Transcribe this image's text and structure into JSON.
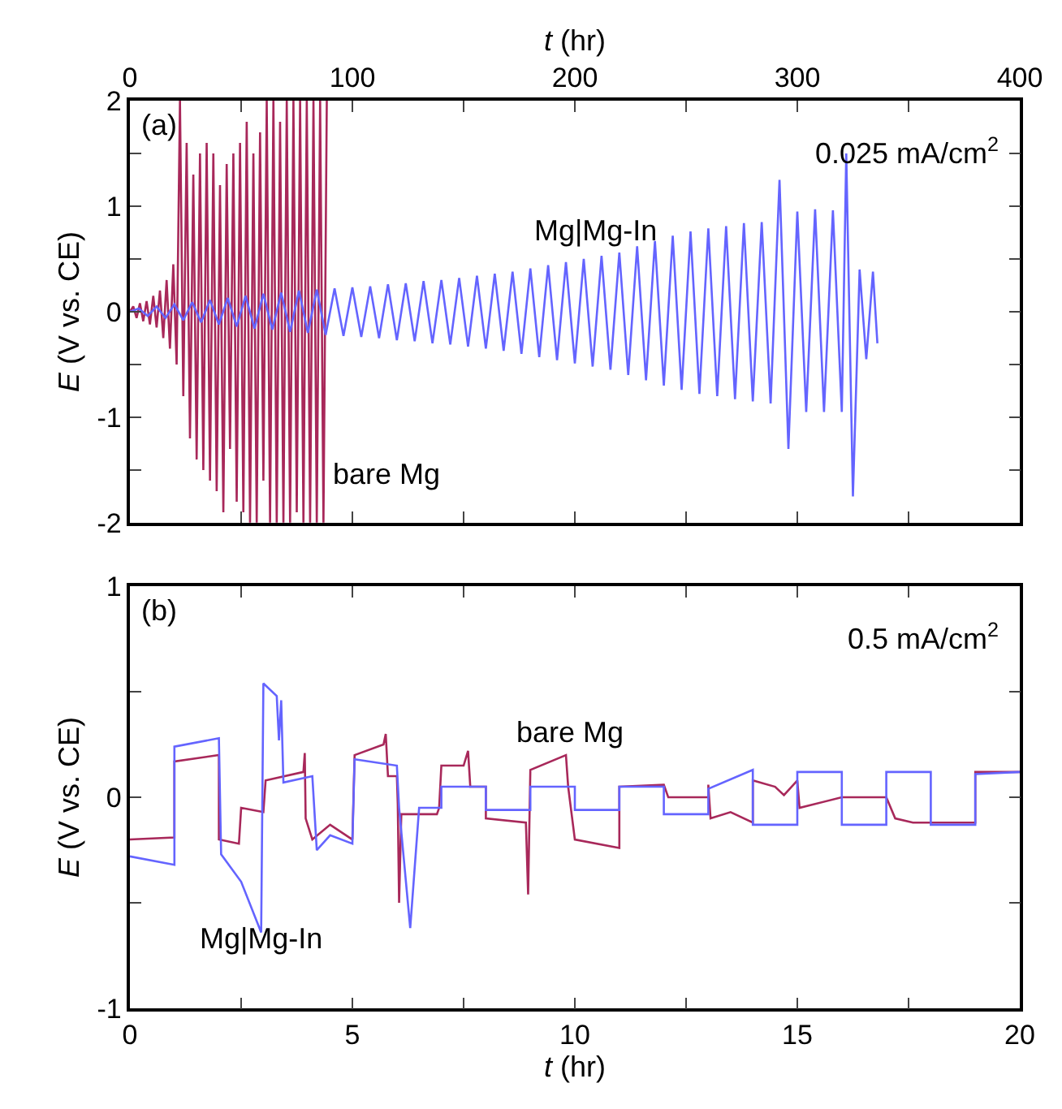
{
  "chart_data": [
    {
      "type": "line",
      "xlabel": "t (hr)",
      "ylabel": "E (V vs. CE)",
      "xlim": [
        0,
        400
      ],
      "xticks": [
        0,
        {
          "value": 50,
          "label": null
        },
        100,
        {
          "value": 150,
          "label": null
        },
        200,
        {
          "value": 250,
          "label": null
        },
        300,
        {
          "value": 350,
          "label": null
        },
        400
      ],
      "ylim": [
        -2,
        2
      ],
      "yticks": [
        -2,
        {
          "value": -1.5,
          "label": null
        },
        -1,
        {
          "value": -0.5,
          "label": null
        },
        0,
        {
          "value": 0.5,
          "label": null
        },
        1,
        {
          "value": 1.5,
          "label": null
        },
        2
      ],
      "series": [
        {
          "name": "bare Mg",
          "color": "#a8285a",
          "x": [
            0,
            1.5,
            3,
            4.5,
            6,
            7.5,
            9,
            10.5,
            12,
            13.5,
            15,
            16.5,
            18,
            19.5,
            21,
            22.5,
            24,
            25.5,
            27,
            28.5,
            30,
            31.5,
            33,
            34.5,
            36,
            37.5,
            39,
            40.5,
            42,
            43.5,
            45,
            46.5,
            48,
            49.5,
            51,
            52.5,
            54,
            55.5,
            57,
            58.5,
            60,
            61.5,
            63,
            64.5,
            66,
            67.5,
            69,
            70.5,
            72,
            73.5,
            75,
            76.5,
            78,
            79.5,
            81,
            82.5,
            84,
            85.5,
            87,
            88.5
          ],
          "values": [
            0,
            0.05,
            -0.06,
            0.08,
            -0.09,
            0.1,
            -0.12,
            0.15,
            -0.15,
            0.2,
            -0.25,
            0.3,
            -0.35,
            0.45,
            -0.5,
            2.0,
            -0.8,
            1.6,
            -1.2,
            1.3,
            -1.4,
            1.5,
            -1.5,
            1.6,
            -1.6,
            1.5,
            -1.7,
            1.2,
            -1.9,
            1.4,
            -1.3,
            1.5,
            -1.8,
            1.6,
            -1.9,
            1.8,
            -2.0,
            1.5,
            -2.0,
            1.7,
            -1.6,
            2.0,
            -2.0,
            2.0,
            -2.0,
            1.8,
            -2.0,
            2.0,
            -2.0,
            2.0,
            -1.9,
            2.0,
            -2.0,
            2.0,
            -2.0,
            2.0,
            -2.0,
            2.0,
            -2.0,
            2.0
          ]
        },
        {
          "name": "Mg|Mg-In",
          "color": "#6464ff",
          "x": [
            0,
            4,
            8,
            12,
            16,
            20,
            24,
            28,
            32,
            36,
            40,
            44,
            48,
            52,
            56,
            60,
            64,
            68,
            72,
            76,
            80,
            84,
            88,
            92,
            96,
            100,
            104,
            108,
            112,
            116,
            120,
            124,
            128,
            132,
            136,
            140,
            144,
            148,
            152,
            156,
            160,
            164,
            168,
            172,
            176,
            180,
            184,
            188,
            192,
            196,
            200,
            204,
            208,
            212,
            216,
            220,
            224,
            228,
            232,
            236,
            240,
            244,
            248,
            252,
            256,
            260,
            264,
            268,
            272,
            276,
            280,
            284,
            288,
            292,
            296,
            300,
            304,
            308,
            312,
            316,
            320,
            322,
            325,
            328,
            331,
            334,
            336
          ],
          "values": [
            0,
            0.03,
            -0.04,
            0.05,
            -0.06,
            0.07,
            -0.08,
            0.09,
            -0.1,
            0.11,
            -0.12,
            0.13,
            -0.14,
            0.15,
            -0.16,
            0.17,
            -0.17,
            0.18,
            -0.19,
            0.2,
            -0.2,
            0.21,
            -0.22,
            0.22,
            -0.23,
            0.23,
            -0.24,
            0.24,
            -0.25,
            0.26,
            -0.27,
            0.27,
            -0.28,
            0.29,
            -0.3,
            0.3,
            -0.31,
            0.32,
            -0.33,
            0.34,
            -0.35,
            0.36,
            -0.37,
            0.38,
            -0.4,
            0.41,
            -0.43,
            0.44,
            -0.46,
            0.47,
            -0.49,
            0.5,
            -0.52,
            0.53,
            -0.55,
            0.56,
            -0.6,
            0.62,
            -0.65,
            0.67,
            -0.7,
            0.72,
            -0.74,
            0.76,
            -0.78,
            0.79,
            -0.8,
            0.81,
            -0.83,
            0.84,
            -0.85,
            0.85,
            -0.87,
            1.25,
            -1.3,
            0.95,
            -0.95,
            0.97,
            -0.95,
            0.96,
            -0.95,
            1.5,
            -1.75,
            0.4,
            -0.45,
            0.38,
            -0.3
          ]
        }
      ],
      "annotations": [
        "(a)",
        "0.025 mA/cm$^{2}$"
      ]
    },
    {
      "type": "line",
      "xlabel": "t (hr)",
      "ylabel": "E (V vs. CE)",
      "xlim": [
        0,
        20
      ],
      "xticks": [
        0,
        {
          "value": 2.5,
          "label": null
        },
        5,
        {
          "value": 7.5,
          "label": null
        },
        10,
        {
          "value": 12.5,
          "label": null
        },
        15,
        {
          "value": 17.5,
          "label": null
        },
        20
      ],
      "ylim": [
        -1,
        1
      ],
      "yticks": [
        -1,
        {
          "value": -0.5,
          "label": null
        },
        0,
        {
          "value": 0.5,
          "label": null
        },
        1
      ],
      "series": [
        {
          "name": "bare Mg",
          "color": "#a8285a",
          "x": [
            0,
            1.0,
            1.0,
            2.0,
            2.0,
            2.45,
            2.5,
            3.0,
            3.05,
            3.9,
            3.93,
            3.95,
            4.1,
            4.5,
            5.0,
            5.05,
            5.7,
            5.75,
            5.8,
            6.0,
            6.02,
            6.05,
            6.1,
            6.9,
            6.95,
            7.0,
            7.5,
            7.6,
            7.65,
            8.0,
            8.0,
            8.9,
            8.95,
            9.0,
            9.8,
            9.85,
            10.0,
            11.0,
            11.0,
            12.0,
            12.1,
            13.0,
            13.0,
            13.05,
            13.5,
            14.0,
            14.0,
            14.5,
            14.7,
            15.0,
            15.05,
            16.0,
            17.0,
            17.2,
            17.6,
            19.0,
            19.0,
            20.0
          ],
          "values": [
            -0.2,
            -0.19,
            0.17,
            0.2,
            -0.2,
            -0.22,
            -0.05,
            -0.07,
            0.08,
            0.12,
            0.21,
            -0.1,
            -0.2,
            -0.13,
            -0.2,
            0.2,
            0.25,
            0.3,
            0.1,
            0.1,
            -0.03,
            -0.5,
            -0.08,
            -0.08,
            -0.05,
            0.15,
            0.15,
            0.22,
            0.05,
            0.05,
            -0.1,
            -0.12,
            -0.46,
            0.13,
            0.2,
            0.05,
            -0.2,
            -0.24,
            0.05,
            0.06,
            0.0,
            0.0,
            0.06,
            -0.1,
            -0.07,
            -0.12,
            0.08,
            0.05,
            0.01,
            0.08,
            -0.05,
            0.0,
            0.0,
            -0.1,
            -0.12,
            -0.12,
            0.12,
            0.12
          ]
        },
        {
          "name": "Mg|Mg-In",
          "color": "#6464ff",
          "x": [
            0,
            1.0,
            1.0,
            2.0,
            2.05,
            2.5,
            2.95,
            3.0,
            3.3,
            3.35,
            3.4,
            3.45,
            4.1,
            4.2,
            4.5,
            5.0,
            5.05,
            6.0,
            6.05,
            6.3,
            6.5,
            7.0,
            7.0,
            8.0,
            8.0,
            9.0,
            9.0,
            10.0,
            10.0,
            11.0,
            11.0,
            12.0,
            12.0,
            13.0,
            13.0,
            14.0,
            14.0,
            15.0,
            15.0,
            16.0,
            16.0,
            17.0,
            17.0,
            18.0,
            18.0,
            19.0,
            19.0,
            20.0
          ],
          "values": [
            -0.28,
            -0.32,
            0.24,
            0.28,
            -0.27,
            -0.4,
            -0.64,
            0.54,
            0.48,
            0.27,
            0.46,
            0.07,
            0.1,
            -0.25,
            -0.18,
            -0.22,
            0.18,
            0.15,
            -0.05,
            -0.62,
            -0.05,
            -0.05,
            0.05,
            0.05,
            -0.06,
            -0.06,
            0.05,
            0.05,
            -0.06,
            -0.06,
            0.05,
            0.05,
            -0.08,
            -0.08,
            0.04,
            0.13,
            -0.13,
            -0.13,
            0.12,
            0.12,
            -0.13,
            -0.13,
            0.12,
            0.12,
            -0.13,
            -0.13,
            0.11,
            0.12
          ]
        }
      ],
      "annotations": [
        "(b)",
        "0.5 mA/cm$^{2}$"
      ]
    }
  ]
}
